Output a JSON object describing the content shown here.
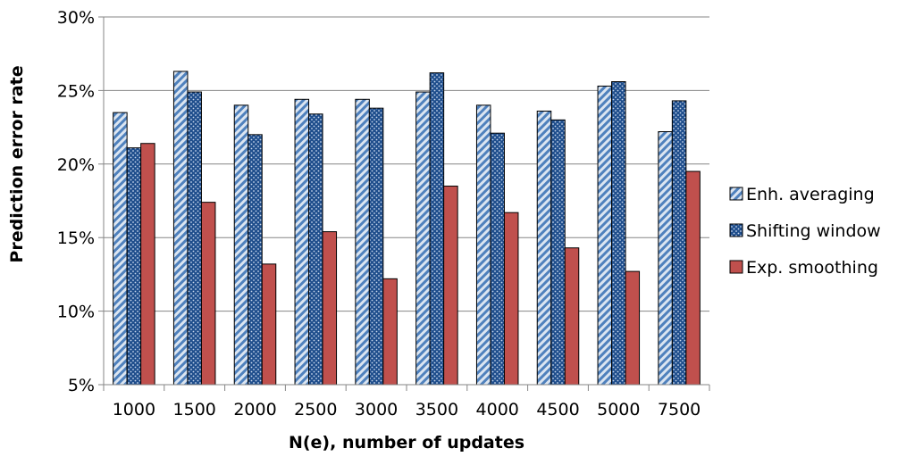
{
  "chart_data": {
    "type": "bar",
    "title": "",
    "xlabel": "N(e), number of updates",
    "ylabel": "Prediction error rate",
    "ylim": [
      0.05,
      0.3
    ],
    "y_ticks": [
      0.05,
      0.1,
      0.15,
      0.2,
      0.25,
      0.3
    ],
    "y_tick_labels": [
      "5%",
      "10%",
      "15%",
      "20%",
      "25%",
      "30%"
    ],
    "y_format": "percent",
    "grid": "horizontal",
    "legend_position": "right",
    "categories": [
      "1000",
      "1500",
      "2000",
      "2500",
      "3000",
      "3500",
      "4000",
      "4500",
      "5000",
      "7500"
    ],
    "series": [
      {
        "name": "Enh. averaging",
        "pattern": "diagonal-stripes",
        "color": "#4f81bd",
        "values": [
          0.235,
          0.263,
          0.24,
          0.244,
          0.244,
          0.249,
          0.24,
          0.236,
          0.253,
          0.222
        ]
      },
      {
        "name": "Shifting window",
        "pattern": "dotted",
        "color": "#1f4e8c",
        "values": [
          0.211,
          0.249,
          0.22,
          0.234,
          0.238,
          0.262,
          0.221,
          0.23,
          0.256,
          0.243
        ]
      },
      {
        "name": "Exp. smoothing",
        "pattern": "solid",
        "color": "#c0504d",
        "values": [
          0.214,
          0.174,
          0.132,
          0.154,
          0.122,
          0.185,
          0.167,
          0.143,
          0.127,
          0.195
        ]
      }
    ]
  }
}
